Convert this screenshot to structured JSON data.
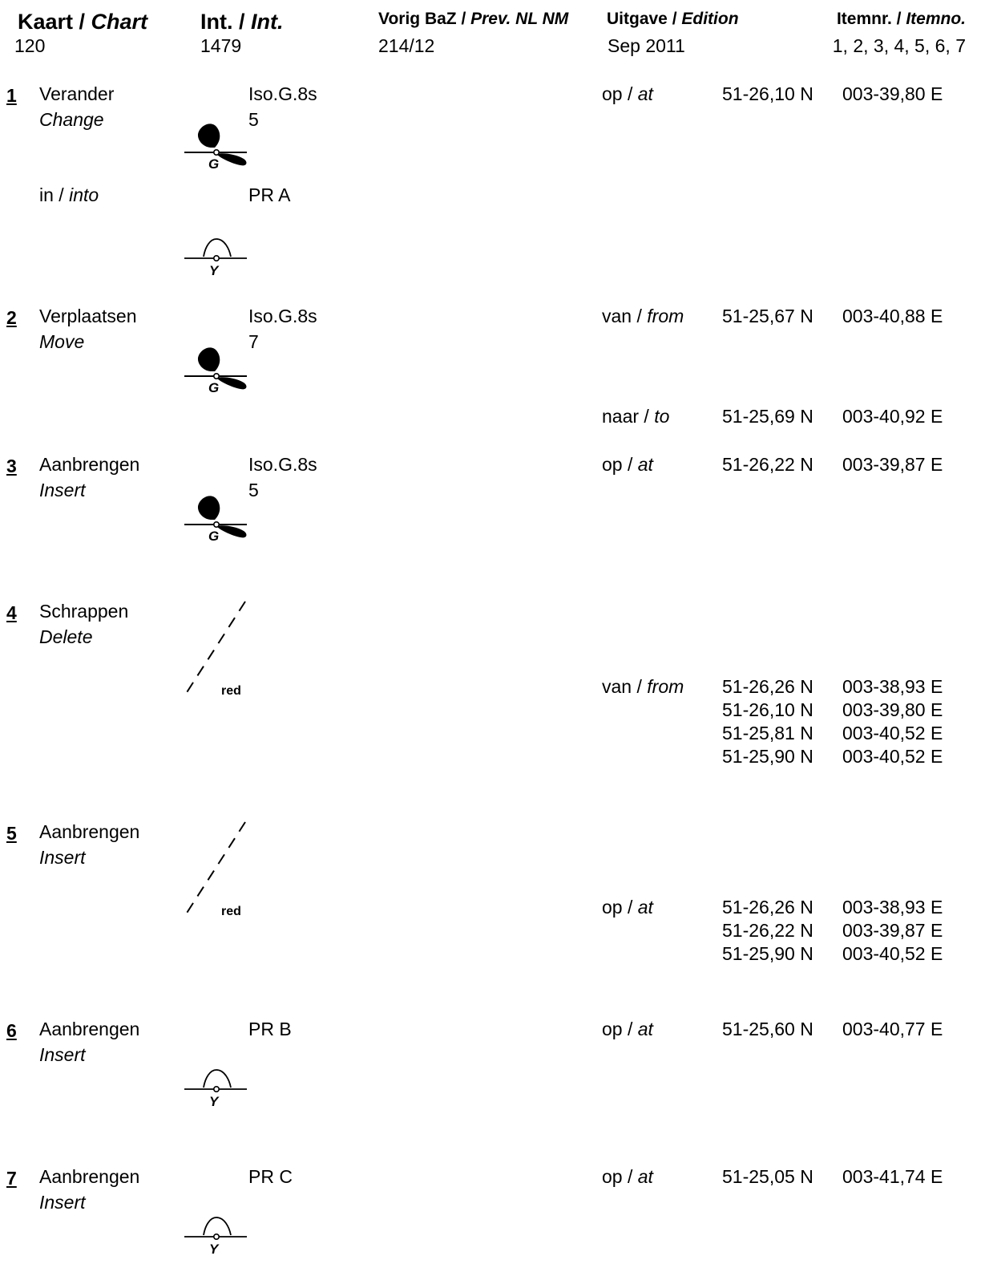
{
  "header": {
    "chart": {
      "label_nl": "Kaart / ",
      "label_en": "Chart",
      "value": "120"
    },
    "int": {
      "label_nl": "Int. / ",
      "label_en": "Int.",
      "value": "1479"
    },
    "prev": {
      "label_nl": "Vorig BaZ / ",
      "label_en": "Prev. NL NM",
      "value": "214/12"
    },
    "edition": {
      "label_nl": "Uitgave / ",
      "label_en": "Edition",
      "value": "Sep 2011"
    },
    "itemno": {
      "label_nl": "Itemnr. / ",
      "label_en": "Itemno.",
      "value": "1, 2, 3, 4, 5, 6, 7"
    }
  },
  "items": [
    {
      "num": "1",
      "action_nl": "Verander",
      "action_en": "Change",
      "light": "Iso.G.8s",
      "height": "5",
      "symbol": "light-G",
      "pos_label_nl": "op / ",
      "pos_label_en": "at",
      "coords": [
        {
          "lat": "51-26,10 N",
          "lon": "003-39,80 E"
        }
      ],
      "into_nl": "in / ",
      "into_en": "into",
      "into_name": "PR A",
      "into_symbol": "buoy-Y"
    },
    {
      "num": "2",
      "action_nl": "Verplaatsen",
      "action_en": "Move",
      "light": "Iso.G.8s",
      "height": "7",
      "symbol": "light-G",
      "from_label_nl": "van / ",
      "from_label_en": "from",
      "from": {
        "lat": "51-25,67 N",
        "lon": "003-40,88 E"
      },
      "to_label_nl": "naar / ",
      "to_label_en": "to",
      "to": {
        "lat": "51-25,69 N",
        "lon": "003-40,92 E"
      }
    },
    {
      "num": "3",
      "action_nl": "Aanbrengen",
      "action_en": "Insert",
      "light": "Iso.G.8s",
      "height": "5",
      "symbol": "light-G",
      "pos_label_nl": "op / ",
      "pos_label_en": "at",
      "coords": [
        {
          "lat": "51-26,22 N",
          "lon": "003-39,87 E"
        }
      ]
    },
    {
      "num": "4",
      "action_nl": "Schrappen",
      "action_en": "Delete",
      "line_label": "red",
      "pos_label_nl": "van / ",
      "pos_label_en": "from",
      "coords": [
        {
          "lat": "51-26,26 N",
          "lon": "003-38,93 E"
        },
        {
          "lat": "51-26,10 N",
          "lon": "003-39,80 E"
        },
        {
          "lat": "51-25,81 N",
          "lon": "003-40,52 E"
        },
        {
          "lat": "51-25,90 N",
          "lon": "003-40,52 E"
        }
      ]
    },
    {
      "num": "5",
      "action_nl": "Aanbrengen",
      "action_en": "Insert",
      "line_label": "red",
      "pos_label_nl": "op / ",
      "pos_label_en": "at",
      "coords": [
        {
          "lat": "51-26,26 N",
          "lon": "003-38,93 E"
        },
        {
          "lat": "51-26,22 N",
          "lon": "003-39,87 E"
        },
        {
          "lat": "51-25,90 N",
          "lon": "003-40,52 E"
        }
      ]
    },
    {
      "num": "6",
      "action_nl": "Aanbrengen",
      "action_en": "Insert",
      "name": "PR B",
      "symbol": "buoy-Y",
      "pos_label_nl": "op / ",
      "pos_label_en": "at",
      "coords": [
        {
          "lat": "51-25,60 N",
          "lon": "003-40,77 E"
        }
      ]
    },
    {
      "num": "7",
      "action_nl": "Aanbrengen",
      "action_en": "Insert",
      "name": "PR C",
      "symbol": "buoy-Y",
      "pos_label_nl": "op / ",
      "pos_label_en": "at",
      "coords": [
        {
          "lat": "51-25,05 N",
          "lon": "003-41,74 E"
        }
      ]
    }
  ],
  "symbols": {
    "light_letter": "G",
    "buoy_letter": "Y"
  }
}
